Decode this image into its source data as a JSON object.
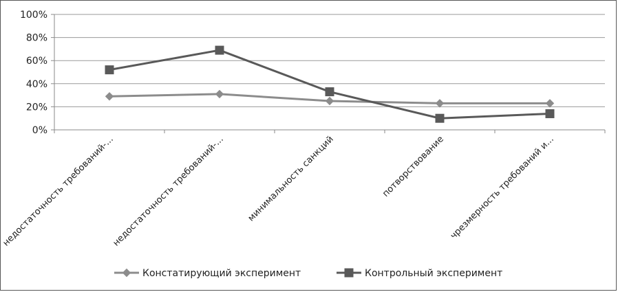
{
  "chart_data": {
    "type": "line",
    "categories": [
      "недостаточность требований-...",
      "недостаточность требований-...",
      "минимальность санкций",
      "потворствование",
      "чрезмерность требований и..."
    ],
    "series": [
      {
        "name": "Констатирующий эксперимент",
        "values": [
          29,
          31,
          25,
          23,
          23
        ],
        "marker": "diamond",
        "color": "#8c8c8c"
      },
      {
        "name": "Контрольный эксперимент",
        "values": [
          52,
          69,
          33,
          10,
          14
        ],
        "marker": "square",
        "color": "#595959"
      }
    ],
    "y_ticks": [
      "0%",
      "20%",
      "40%",
      "60%",
      "80%",
      "100%"
    ],
    "ylim": [
      0,
      100
    ],
    "title": "",
    "xlabel": "",
    "ylabel": "",
    "grid": true,
    "legend_position": "bottom"
  }
}
